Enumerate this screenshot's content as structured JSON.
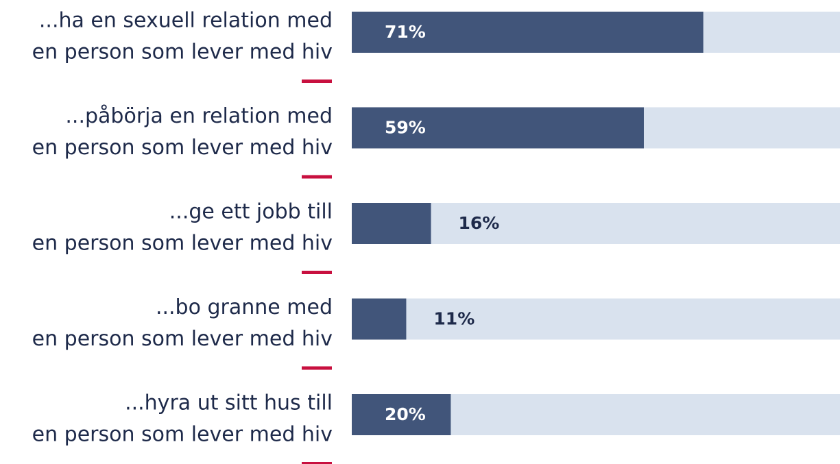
{
  "chart_data": {
    "type": "bar",
    "orientation": "horizontal",
    "categories": [
      [
        "...ha en sexuell relation med",
        "en person som lever med hiv"
      ],
      [
        "...påbörja en relation med",
        "en person som lever med hiv"
      ],
      [
        "...ge ett jobb till",
        "en person som lever med hiv"
      ],
      [
        "...bo granne med",
        "en person som lever med hiv"
      ],
      [
        "...hyra ut sitt hus till",
        "en person som lever med hiv"
      ]
    ],
    "values": [
      71,
      59,
      16,
      11,
      20
    ],
    "value_labels": [
      "71%",
      "59%",
      "16%",
      "11%",
      "20%"
    ],
    "color": "#41557a",
    "track_color": "#d9e2ee",
    "xlim": [
      0,
      100
    ]
  }
}
